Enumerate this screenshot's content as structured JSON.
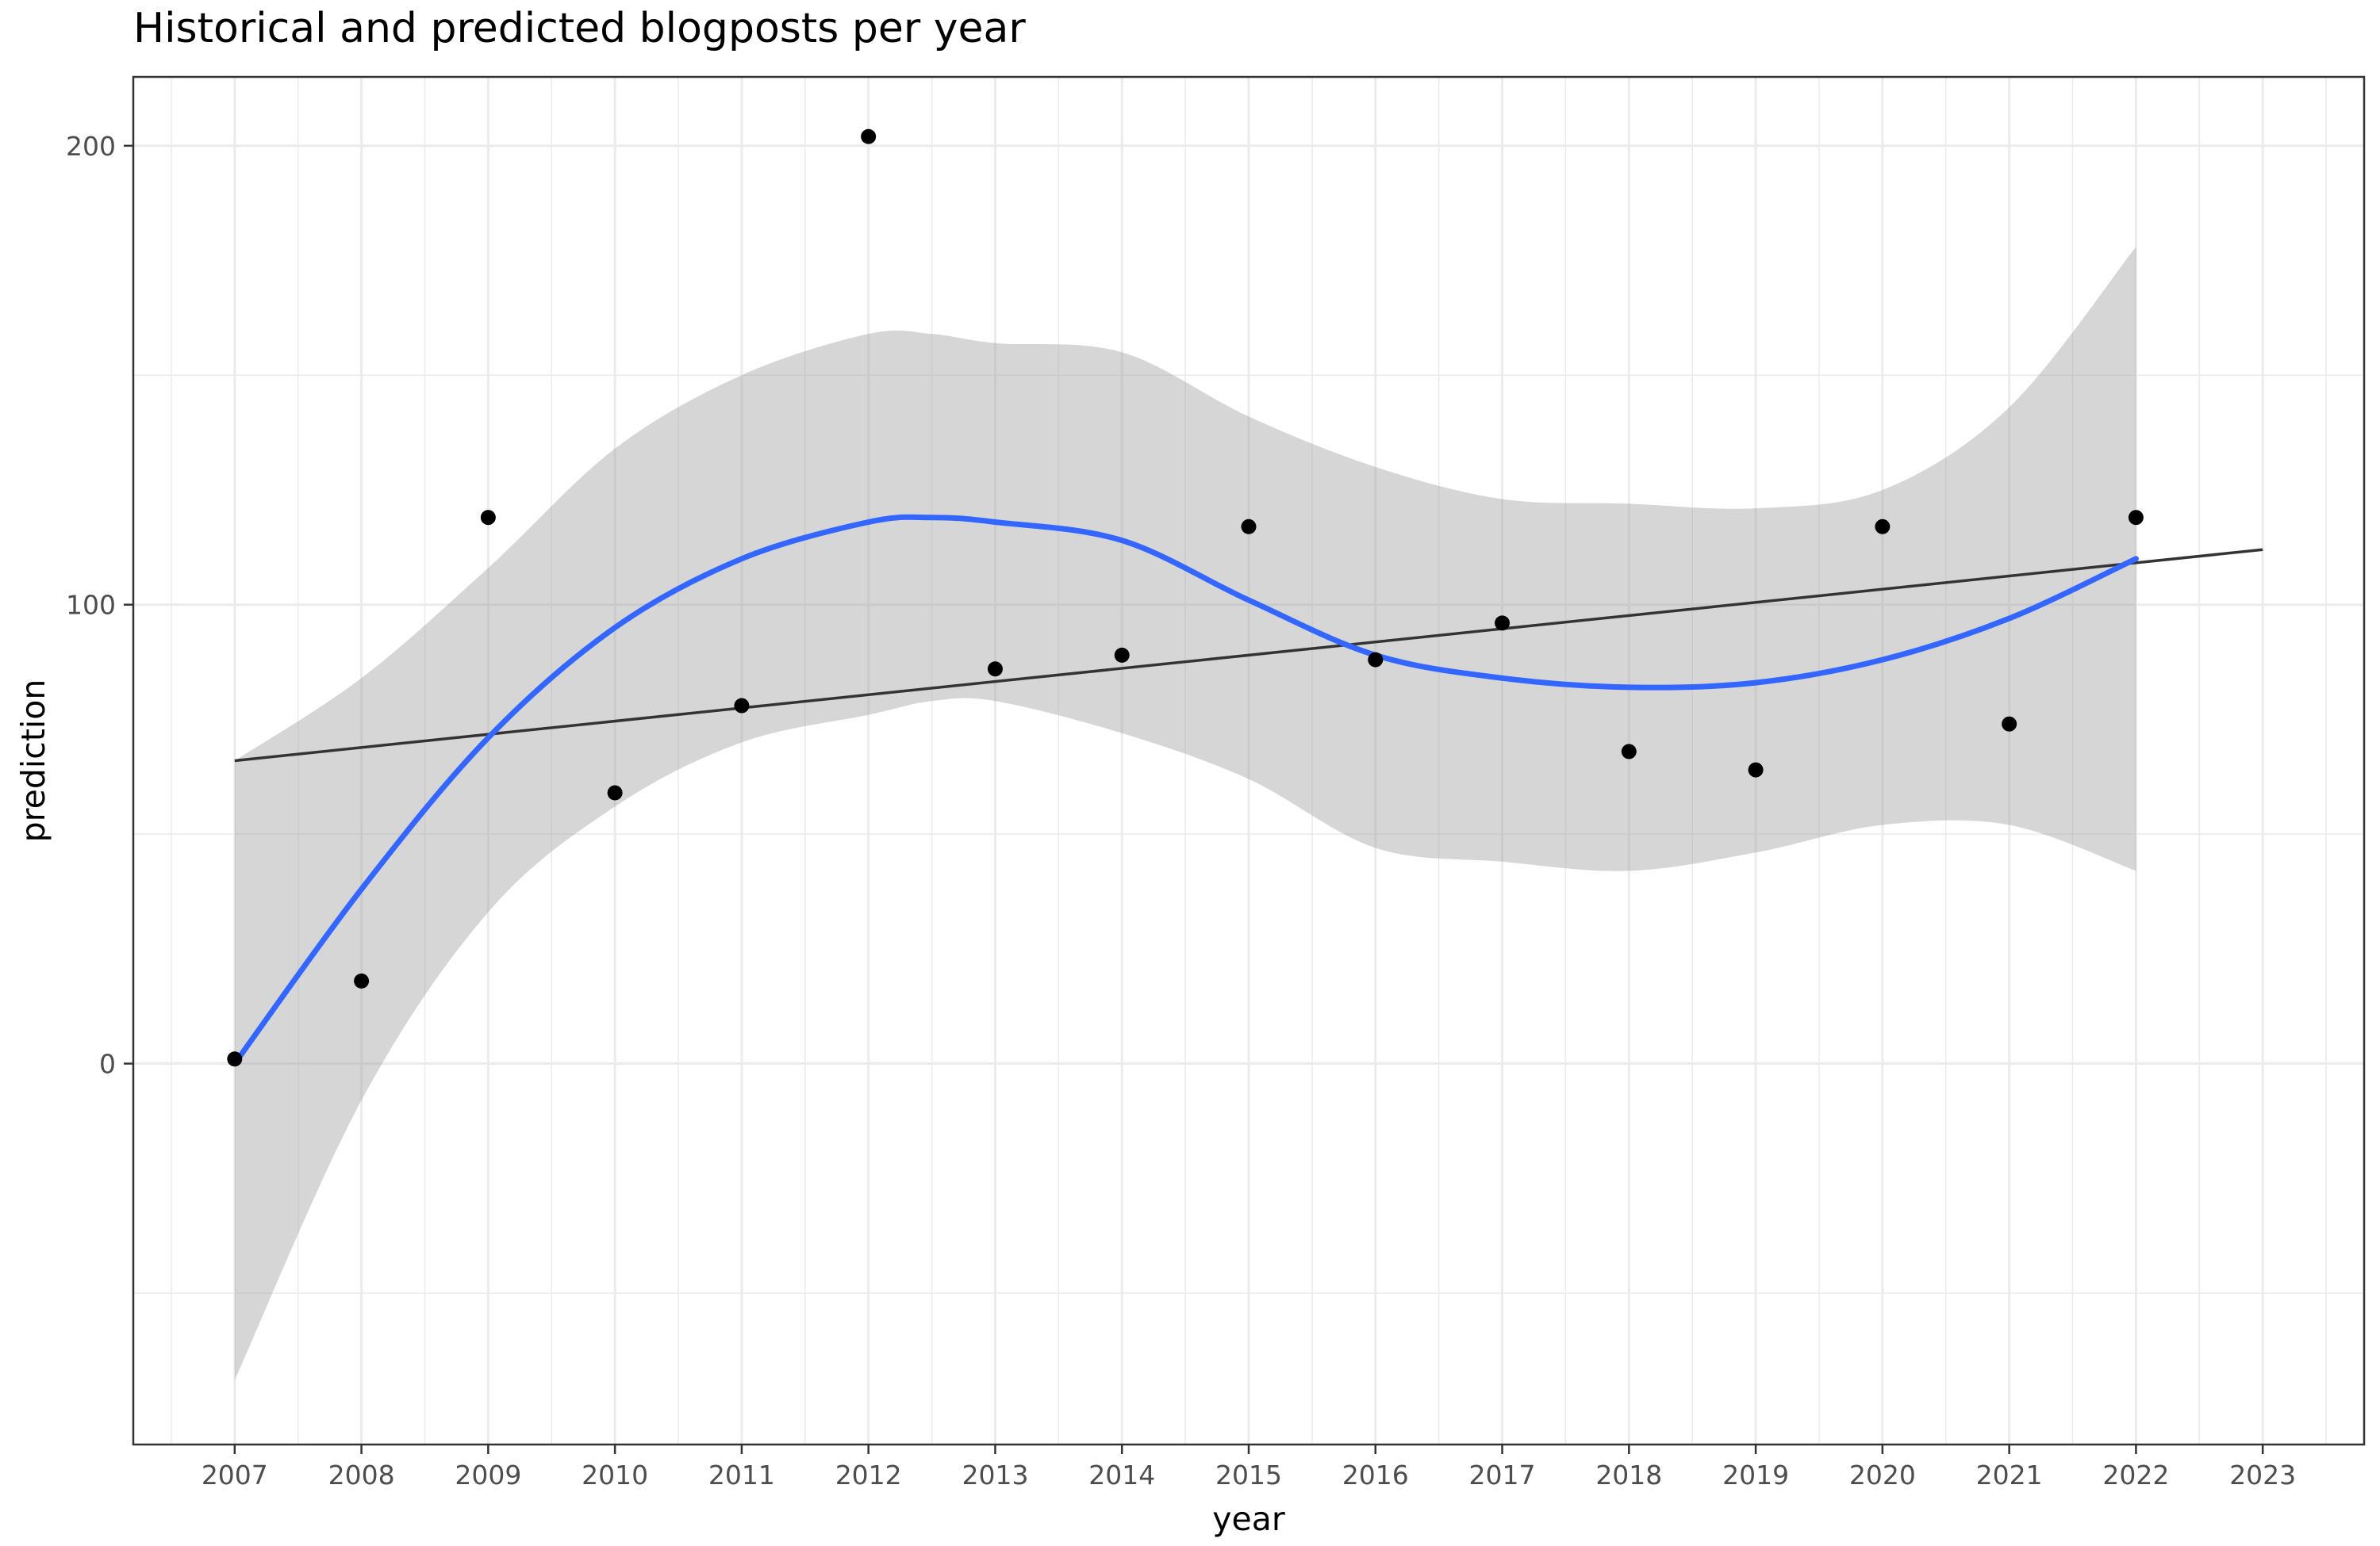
{
  "chart_data": {
    "type": "scatter",
    "title": "Historical and predicted blogposts per year",
    "xlabel": "year",
    "ylabel": "prediction",
    "xlim": [
      2006.2,
      2023.8
    ],
    "ylim": [
      -83,
      215
    ],
    "x_ticks": [
      2007,
      2008,
      2009,
      2010,
      2011,
      2012,
      2013,
      2014,
      2015,
      2016,
      2017,
      2018,
      2019,
      2020,
      2021,
      2022,
      2023
    ],
    "y_ticks": [
      0,
      100,
      200
    ],
    "grid": true,
    "legend": "none",
    "series": [
      {
        "type": "points",
        "x": [
          2007,
          2008,
          2009,
          2010,
          2011,
          2012,
          2013,
          2014,
          2015,
          2016,
          2017,
          2018,
          2019,
          2020,
          2021,
          2022
        ],
        "y": [
          1,
          18,
          119,
          59,
          78,
          202,
          86,
          89,
          117,
          88,
          96,
          68,
          64,
          117,
          74,
          119
        ]
      },
      {
        "type": "linear-trend",
        "x": [
          2007,
          2023
        ],
        "y": [
          66,
          112
        ]
      },
      {
        "type": "smooth",
        "x": [
          2007,
          2008,
          2009,
          2010,
          2011,
          2012,
          2012.5,
          2013,
          2014,
          2015,
          2016,
          2017,
          2018,
          2019,
          2020,
          2021,
          2022
        ],
        "y": [
          0,
          38,
          71,
          95,
          110,
          118,
          119,
          118,
          114,
          101,
          89,
          84,
          82,
          83,
          88,
          97,
          110
        ],
        "ci_lower": [
          -69,
          -8,
          33,
          56,
          70,
          76,
          79,
          79,
          72,
          62,
          47,
          44,
          42,
          46,
          52,
          52,
          42
        ],
        "ci_upper": [
          66,
          84,
          108,
          134,
          150,
          159,
          159,
          157,
          155,
          141,
          130,
          123,
          122,
          121,
          125,
          143,
          178
        ]
      }
    ],
    "colors": {
      "points": "#000000",
      "trend": "#333333",
      "smooth": "#3366FF",
      "ribbon": "#999999",
      "grid": "#ebebeb",
      "panel_border": "#333333"
    }
  }
}
